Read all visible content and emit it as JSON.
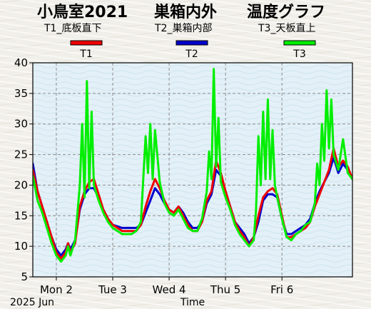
{
  "chart_data": {
    "type": "line",
    "title_left": "小鳥室2021",
    "title_mid": "巣箱内外",
    "title_right": "温度グラフ",
    "xlabel": "Time",
    "date_caption": "2025 Jun",
    "ylim": [
      5,
      40
    ],
    "yticks": [
      5,
      10,
      15,
      20,
      25,
      30,
      35,
      40
    ],
    "xlim": [
      "2025-06-01T14:00",
      "2025-06-07T06:00"
    ],
    "xticks": [
      {
        "label": "Mon 2",
        "t": "2025-06-02T00:00"
      },
      {
        "label": "Tue 3",
        "t": "2025-06-03T00:00"
      },
      {
        "label": "Wed 4",
        "t": "2025-06-04T00:00"
      },
      {
        "label": "Thu 5",
        "t": "2025-06-05T00:00"
      },
      {
        "label": "Fri 6",
        "t": "2025-06-06T00:00"
      }
    ],
    "grid": true,
    "legend_placement": "top",
    "legend": [
      {
        "desc": "T1_底板直下",
        "code": "T1",
        "color": "#ee0000"
      },
      {
        "desc": "T2_巣箱内部",
        "code": "T2",
        "color": "#0000cc"
      },
      {
        "desc": "T3_天板直上",
        "code": "T3",
        "color": "#00ee00"
      }
    ],
    "series": [
      {
        "name": "T2",
        "color": "#0000cc",
        "x": [
          "2025-06-01T14:00",
          "2025-06-01T16:00",
          "2025-06-01T18:00",
          "2025-06-01T20:00",
          "2025-06-01T22:00",
          "2025-06-02T00:00",
          "2025-06-02T02:00",
          "2025-06-02T04:00",
          "2025-06-02T05:00",
          "2025-06-02T06:00",
          "2025-06-02T08:00",
          "2025-06-02T10:00",
          "2025-06-02T12:00",
          "2025-06-02T14:00",
          "2025-06-02T16:00",
          "2025-06-02T18:00",
          "2025-06-02T20:00",
          "2025-06-02T22:00",
          "2025-06-03T00:00",
          "2025-06-03T04:00",
          "2025-06-03T08:00",
          "2025-06-03T10:00",
          "2025-06-03T12:00",
          "2025-06-03T14:00",
          "2025-06-03T16:00",
          "2025-06-03T18:00",
          "2025-06-03T20:00",
          "2025-06-03T22:00",
          "2025-06-04T00:00",
          "2025-06-04T02:00",
          "2025-06-04T04:00",
          "2025-06-04T06:00",
          "2025-06-04T08:00",
          "2025-06-04T10:00",
          "2025-06-04T12:00",
          "2025-06-04T14:00",
          "2025-06-04T16:00",
          "2025-06-04T18:00",
          "2025-06-04T20:00",
          "2025-06-04T22:00",
          "2025-06-05T00:00",
          "2025-06-05T02:00",
          "2025-06-05T04:00",
          "2025-06-05T06:00",
          "2025-06-05T08:00",
          "2025-06-05T10:00",
          "2025-06-05T12:00",
          "2025-06-05T14:00",
          "2025-06-05T16:00",
          "2025-06-05T18:00",
          "2025-06-05T20:00",
          "2025-06-05T22:00",
          "2025-06-06T00:00",
          "2025-06-06T02:00",
          "2025-06-06T04:00",
          "2025-06-06T06:00",
          "2025-06-06T08:00",
          "2025-06-06T10:00",
          "2025-06-06T12:00",
          "2025-06-06T14:00",
          "2025-06-06T16:00",
          "2025-06-06T18:00",
          "2025-06-06T20:00",
          "2025-06-06T22:00",
          "2025-06-07T00:00",
          "2025-06-07T02:00",
          "2025-06-07T04:00",
          "2025-06-07T06:00"
        ],
        "values": [
          23.5,
          19.0,
          16.5,
          14.0,
          11.5,
          9.5,
          8.5,
          9.5,
          10.5,
          9.5,
          11.0,
          16.0,
          18.5,
          19.5,
          19.5,
          18.0,
          16.0,
          14.5,
          13.5,
          13.0,
          13.0,
          13.0,
          13.5,
          15.5,
          17.5,
          19.5,
          18.5,
          17.0,
          16.0,
          15.5,
          16.5,
          15.5,
          14.0,
          13.0,
          13.0,
          14.0,
          17.0,
          18.5,
          22.5,
          21.5,
          19.0,
          16.5,
          14.0,
          13.0,
          12.0,
          10.5,
          11.5,
          14.0,
          17.5,
          18.5,
          18.5,
          18.0,
          14.5,
          12.0,
          12.0,
          12.5,
          13.0,
          13.5,
          14.5,
          17.0,
          19.0,
          20.5,
          22.0,
          24.5,
          22.0,
          23.5,
          22.5,
          21.0
        ]
      },
      {
        "name": "T1",
        "color": "#ee0000",
        "x": [
          "2025-06-01T14:00",
          "2025-06-01T16:00",
          "2025-06-01T18:00",
          "2025-06-01T20:00",
          "2025-06-01T22:00",
          "2025-06-02T00:00",
          "2025-06-02T02:00",
          "2025-06-02T04:00",
          "2025-06-02T05:00",
          "2025-06-02T06:00",
          "2025-06-02T08:00",
          "2025-06-02T10:00",
          "2025-06-02T12:00",
          "2025-06-02T14:00",
          "2025-06-02T16:00",
          "2025-06-02T18:00",
          "2025-06-02T20:00",
          "2025-06-02T22:00",
          "2025-06-03T00:00",
          "2025-06-03T04:00",
          "2025-06-03T08:00",
          "2025-06-03T10:00",
          "2025-06-03T12:00",
          "2025-06-03T14:00",
          "2025-06-03T16:00",
          "2025-06-03T18:00",
          "2025-06-03T20:00",
          "2025-06-03T22:00",
          "2025-06-04T00:00",
          "2025-06-04T02:00",
          "2025-06-04T04:00",
          "2025-06-04T06:00",
          "2025-06-04T08:00",
          "2025-06-04T10:00",
          "2025-06-04T12:00",
          "2025-06-04T14:00",
          "2025-06-04T16:00",
          "2025-06-04T18:00",
          "2025-06-04T20:00",
          "2025-06-04T22:00",
          "2025-06-05T00:00",
          "2025-06-05T02:00",
          "2025-06-05T04:00",
          "2025-06-05T06:00",
          "2025-06-05T08:00",
          "2025-06-05T10:00",
          "2025-06-05T12:00",
          "2025-06-05T14:00",
          "2025-06-05T16:00",
          "2025-06-05T18:00",
          "2025-06-05T20:00",
          "2025-06-05T22:00",
          "2025-06-06T00:00",
          "2025-06-06T02:00",
          "2025-06-06T04:00",
          "2025-06-06T06:00",
          "2025-06-06T08:00",
          "2025-06-06T10:00",
          "2025-06-06T12:00",
          "2025-06-06T14:00",
          "2025-06-06T16:00",
          "2025-06-06T18:00",
          "2025-06-06T20:00",
          "2025-06-06T22:00",
          "2025-06-07T00:00",
          "2025-06-07T02:00",
          "2025-06-07T04:00",
          "2025-06-07T06:00"
        ],
        "values": [
          22.5,
          19.0,
          16.5,
          14.0,
          11.5,
          9.0,
          8.0,
          9.0,
          10.5,
          9.0,
          10.5,
          16.5,
          19.0,
          20.5,
          21.0,
          18.5,
          16.0,
          14.5,
          13.5,
          12.5,
          12.5,
          12.5,
          13.5,
          16.5,
          19.0,
          21.0,
          19.5,
          17.5,
          16.0,
          15.5,
          16.5,
          15.0,
          13.5,
          12.5,
          12.5,
          14.0,
          17.5,
          19.0,
          24.0,
          22.0,
          19.0,
          16.5,
          14.0,
          12.5,
          11.5,
          10.0,
          11.5,
          15.0,
          18.0,
          19.0,
          19.5,
          18.5,
          15.0,
          11.5,
          11.5,
          12.0,
          12.5,
          13.0,
          14.0,
          16.5,
          18.5,
          20.5,
          22.5,
          26.0,
          23.0,
          24.0,
          23.0,
          21.0
        ]
      },
      {
        "name": "T3",
        "color": "#00ee00",
        "x": [
          "2025-06-01T14:00",
          "2025-06-01T16:00",
          "2025-06-01T18:00",
          "2025-06-01T20:00",
          "2025-06-01T22:00",
          "2025-06-02T00:00",
          "2025-06-02T02:00",
          "2025-06-02T04:00",
          "2025-06-02T05:00",
          "2025-06-02T06:00",
          "2025-06-02T08:00",
          "2025-06-02T10:00",
          "2025-06-02T11:00",
          "2025-06-02T12:00",
          "2025-06-02T13:00",
          "2025-06-02T14:00",
          "2025-06-02T15:00",
          "2025-06-02T16:00",
          "2025-06-02T18:00",
          "2025-06-02T20:00",
          "2025-06-02T22:00",
          "2025-06-03T00:00",
          "2025-06-03T04:00",
          "2025-06-03T08:00",
          "2025-06-03T10:00",
          "2025-06-03T12:00",
          "2025-06-03T13:00",
          "2025-06-03T14:00",
          "2025-06-03T15:00",
          "2025-06-03T16:00",
          "2025-06-03T17:00",
          "2025-06-03T18:00",
          "2025-06-03T20:00",
          "2025-06-03T22:00",
          "2025-06-04T00:00",
          "2025-06-04T02:00",
          "2025-06-04T04:00",
          "2025-06-04T06:00",
          "2025-06-04T08:00",
          "2025-06-04T10:00",
          "2025-06-04T12:00",
          "2025-06-04T14:00",
          "2025-06-04T16:00",
          "2025-06-04T17:00",
          "2025-06-04T18:00",
          "2025-06-04T19:00",
          "2025-06-04T20:00",
          "2025-06-04T21:00",
          "2025-06-04T22:00",
          "2025-06-05T00:00",
          "2025-06-05T02:00",
          "2025-06-05T04:00",
          "2025-06-05T06:00",
          "2025-06-05T08:00",
          "2025-06-05T10:00",
          "2025-06-05T12:00",
          "2025-06-05T13:00",
          "2025-06-05T14:00",
          "2025-06-05T15:00",
          "2025-06-05T16:00",
          "2025-06-05T17:00",
          "2025-06-05T18:00",
          "2025-06-05T19:00",
          "2025-06-05T20:00",
          "2025-06-05T21:00",
          "2025-06-05T22:00",
          "2025-06-06T00:00",
          "2025-06-06T02:00",
          "2025-06-06T04:00",
          "2025-06-06T06:00",
          "2025-06-06T08:00",
          "2025-06-06T10:00",
          "2025-06-06T12:00",
          "2025-06-06T14:00",
          "2025-06-06T15:00",
          "2025-06-06T16:00",
          "2025-06-06T17:00",
          "2025-06-06T18:00",
          "2025-06-06T19:00",
          "2025-06-06T20:00",
          "2025-06-06T21:00",
          "2025-06-06T22:00",
          "2025-06-07T00:00",
          "2025-06-07T02:00",
          "2025-06-07T04:00",
          "2025-06-07T06:00"
        ],
        "values": [
          21.5,
          17.5,
          15.5,
          13.0,
          10.5,
          8.5,
          7.5,
          8.5,
          10.0,
          8.5,
          11.0,
          20.0,
          30.0,
          18.0,
          37.0,
          19.5,
          32.0,
          20.0,
          17.5,
          15.5,
          14.0,
          13.0,
          12.0,
          12.0,
          12.5,
          14.0,
          21.0,
          28.0,
          22.0,
          30.0,
          21.0,
          29.0,
          20.5,
          17.0,
          15.5,
          15.0,
          16.0,
          14.5,
          13.0,
          12.5,
          12.5,
          14.5,
          19.0,
          25.5,
          21.0,
          39.0,
          23.0,
          31.0,
          20.5,
          18.0,
          16.0,
          13.5,
          12.0,
          11.0,
          10.0,
          11.0,
          16.0,
          28.0,
          20.0,
          32.0,
          21.0,
          34.0,
          21.0,
          29.0,
          20.0,
          18.0,
          14.5,
          11.5,
          11.0,
          12.0,
          12.5,
          13.5,
          14.0,
          17.0,
          23.5,
          20.0,
          30.0,
          24.0,
          35.5,
          26.0,
          34.0,
          25.0,
          22.5,
          27.5,
          22.0,
          21.0
        ]
      }
    ]
  }
}
